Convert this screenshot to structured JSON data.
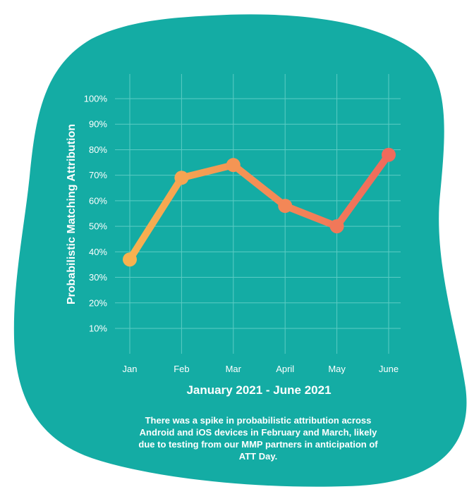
{
  "colors": {
    "blob": "#14aca4",
    "grid": "#5ccbc4",
    "text": "#ffffff",
    "line_start": "#f7b24f",
    "line_end": "#f06a5c"
  },
  "caption": "There was a spike in probabilistic attribution across Android and iOS devices in February and March, likely due to testing from our MMP partners in anticipation of ATT Day.",
  "chart_data": {
    "type": "line",
    "xlabel": "January 2021 - June 2021",
    "ylabel": "Probabilistic Matching Attribution",
    "categories": [
      "Jan",
      "Feb",
      "Mar",
      "April",
      "May",
      "June"
    ],
    "y_ticks": [
      "10%",
      "20%",
      "30%",
      "40%",
      "50%",
      "60%",
      "70%",
      "80%",
      "90%",
      "100%"
    ],
    "ylim": [
      0,
      100
    ],
    "grid": true,
    "series": [
      {
        "values": [
          37,
          69,
          74,
          58,
          50,
          78
        ]
      }
    ]
  }
}
